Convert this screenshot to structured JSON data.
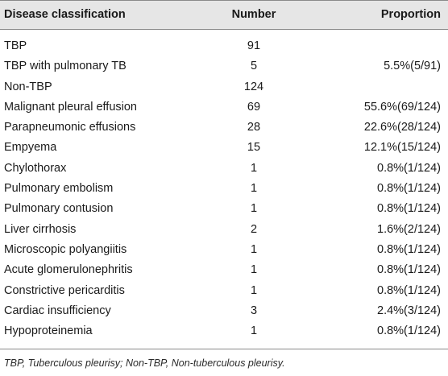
{
  "table": {
    "headers": {
      "classification": "Disease classification",
      "number": "Number",
      "proportion": "Proportion"
    },
    "rows": [
      {
        "classification": "TBP",
        "number": "91",
        "proportion": ""
      },
      {
        "classification": "TBP with pulmonary TB",
        "number": "5",
        "proportion": "5.5%(5/91)"
      },
      {
        "classification": "Non-TBP",
        "number": "124",
        "proportion": ""
      },
      {
        "classification": "Malignant pleural effusion",
        "number": "69",
        "proportion": "55.6%(69/124)"
      },
      {
        "classification": "Parapneumonic effusions",
        "number": "28",
        "proportion": "22.6%(28/124)"
      },
      {
        "classification": "Empyema",
        "number": "15",
        "proportion": "12.1%(15/124)"
      },
      {
        "classification": "Chylothorax",
        "number": "1",
        "proportion": "0.8%(1/124)"
      },
      {
        "classification": "Pulmonary embolism",
        "number": "1",
        "proportion": "0.8%(1/124)"
      },
      {
        "classification": "Pulmonary contusion",
        "number": "1",
        "proportion": "0.8%(1/124)"
      },
      {
        "classification": "Liver cirrhosis",
        "number": "2",
        "proportion": "1.6%(2/124)"
      },
      {
        "classification": "Microscopic polyangiitis",
        "number": "1",
        "proportion": "0.8%(1/124)"
      },
      {
        "classification": "Acute glomerulonephritis",
        "number": "1",
        "proportion": "0.8%(1/124)"
      },
      {
        "classification": "Constrictive pericarditis",
        "number": "1",
        "proportion": "0.8%(1/124)"
      },
      {
        "classification": "Cardiac insufficiency",
        "number": "3",
        "proportion": "2.4%(3/124)"
      },
      {
        "classification": "Hypoproteinemia",
        "number": "1",
        "proportion": "0.8%(1/124)"
      }
    ]
  },
  "footnote": "TBP, Tuberculous pleurisy; Non-TBP, Non-tuberculous pleurisy.",
  "colors": {
    "header_background": "#e6e6e6",
    "rule": "#8a8a8a",
    "text": "#1a1a1a"
  }
}
